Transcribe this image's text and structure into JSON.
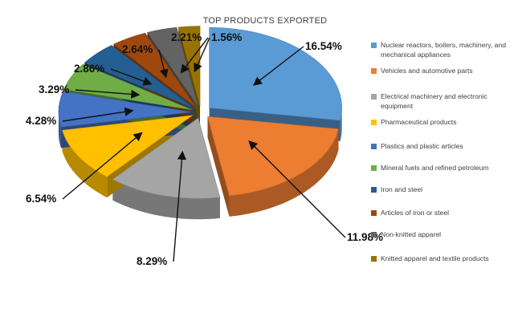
{
  "chart_data": {
    "type": "pie",
    "title": "TOP PRODUCTS EXPORTED",
    "legend_position": "right",
    "style": "3d-exploded",
    "slices": [
      {
        "label": "Nuclear reactors, boilers, machinery, and mechanical appliances",
        "value": 16.54,
        "display": "16.54%",
        "color": "#5b9bd5"
      },
      {
        "label": "Vehicles and automotive parts",
        "value": 11.98,
        "display": "11.98%",
        "color": "#ed7d31"
      },
      {
        "label": "Electrical machinery and electronic equipment",
        "value": 8.29,
        "display": "8.29%",
        "color": "#a5a5a5"
      },
      {
        "label": "Pharmaceutical products",
        "value": 6.54,
        "display": "6.54%",
        "color": "#ffc000"
      },
      {
        "label": "Plastics and plastic articles",
        "value": 4.28,
        "display": "4.28%",
        "color": "#4472c4"
      },
      {
        "label": "Mineral fuels and refined petroleum",
        "value": 3.29,
        "display": "3.29%",
        "color": "#70ad47"
      },
      {
        "label": "Iron and steel",
        "value": 2.86,
        "display": "2.86%",
        "color": "#255e91"
      },
      {
        "label": "Articles of iron or steel",
        "value": 2.64,
        "display": "2.64%",
        "color": "#9e480e"
      },
      {
        "label": "Non-knitted apparel",
        "value": 2.21,
        "display": "2.21%",
        "color": "#636363"
      },
      {
        "label": "Knitted apparel and textile products",
        "value": 1.56,
        "display": "1.56%",
        "color": "#997300"
      }
    ]
  }
}
